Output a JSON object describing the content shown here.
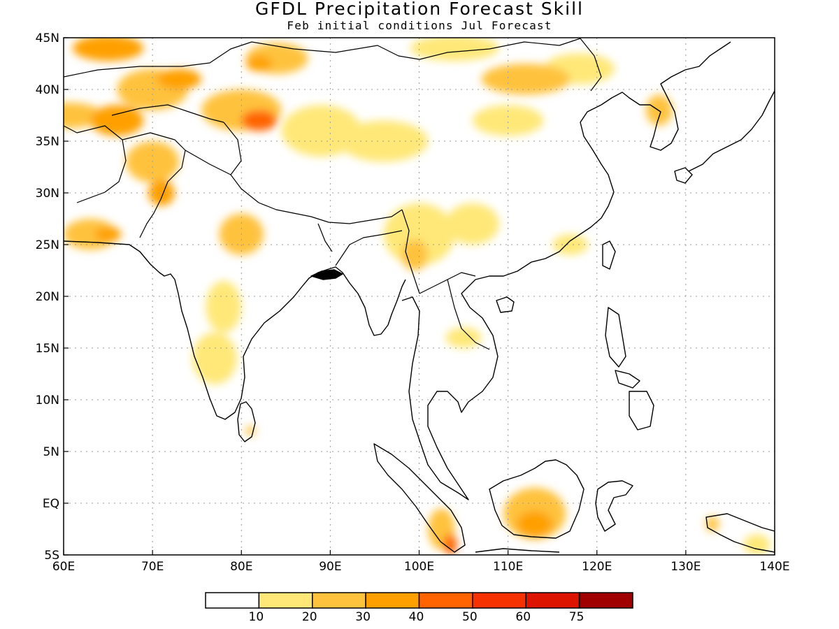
{
  "title": "GFDL Precipitation Forecast Skill",
  "subtitle": "Feb initial conditions  Jul Forecast",
  "colors": {
    "frame": "#000000",
    "grid": "#9a9a9a",
    "coast": "#000000"
  },
  "chart_data": {
    "type": "heatmap",
    "lon_range": [
      60,
      140
    ],
    "lat_range": [
      -5,
      45
    ],
    "x_ticks": [
      {
        "value": 60,
        "label": "60E"
      },
      {
        "value": 70,
        "label": "70E"
      },
      {
        "value": 80,
        "label": "80E"
      },
      {
        "value": 90,
        "label": "90E"
      },
      {
        "value": 100,
        "label": "100E"
      },
      {
        "value": 110,
        "label": "110E"
      },
      {
        "value": 120,
        "label": "120E"
      },
      {
        "value": 130,
        "label": "130E"
      },
      {
        "value": 140,
        "label": "140E"
      }
    ],
    "y_ticks": [
      {
        "value": 45,
        "label": "45N"
      },
      {
        "value": 40,
        "label": "40N"
      },
      {
        "value": 35,
        "label": "35N"
      },
      {
        "value": 30,
        "label": "30N"
      },
      {
        "value": 25,
        "label": "25N"
      },
      {
        "value": 20,
        "label": "20N"
      },
      {
        "value": 15,
        "label": "15N"
      },
      {
        "value": 10,
        "label": "10N"
      },
      {
        "value": 5,
        "label": "5N"
      },
      {
        "value": 0,
        "label": "EQ"
      },
      {
        "value": -5,
        "label": "5S"
      }
    ],
    "grid": true,
    "colorbar": {
      "boundaries": [
        "10",
        "20",
        "30",
        "40",
        "50",
        "60",
        "75"
      ],
      "colors": [
        "#ffffff",
        "#ffe878",
        "#ffc23c",
        "#ffa000",
        "#ff6400",
        "#f53200",
        "#dc1400",
        "#a00000"
      ]
    },
    "skill_regions": [
      {
        "lon": 65,
        "lat": 44,
        "w": 8,
        "h": 2.5,
        "level": 3
      },
      {
        "lon": 60.5,
        "lat": 37.5,
        "w": 8,
        "h": 2.5,
        "level": 2
      },
      {
        "lon": 66,
        "lat": 37,
        "w": 6,
        "h": 3,
        "level": 3
      },
      {
        "lon": 70,
        "lat": 40,
        "w": 8,
        "h": 4,
        "level": 2
      },
      {
        "lon": 73,
        "lat": 41,
        "w": 5,
        "h": 2,
        "level": 3
      },
      {
        "lon": 80,
        "lat": 38,
        "w": 9,
        "h": 4,
        "level": 2
      },
      {
        "lon": 82,
        "lat": 37,
        "w": 4,
        "h": 2,
        "level": 4
      },
      {
        "lon": 84,
        "lat": 43,
        "w": 7,
        "h": 3,
        "level": 2
      },
      {
        "lon": 82,
        "lat": 42.5,
        "w": 3,
        "h": 1.5,
        "level": 3
      },
      {
        "lon": 70,
        "lat": 33,
        "w": 6,
        "h": 4,
        "level": 2
      },
      {
        "lon": 71,
        "lat": 30,
        "w": 3,
        "h": 2.5,
        "level": 3
      },
      {
        "lon": 63,
        "lat": 26,
        "w": 6,
        "h": 3,
        "level": 2
      },
      {
        "lon": 65,
        "lat": 26,
        "w": 3,
        "h": 1.5,
        "level": 3
      },
      {
        "lon": 80,
        "lat": 26,
        "w": 5,
        "h": 4,
        "level": 2
      },
      {
        "lon": 89,
        "lat": 36,
        "w": 9,
        "h": 5,
        "level": 1
      },
      {
        "lon": 96,
        "lat": 35,
        "w": 10,
        "h": 4,
        "level": 1
      },
      {
        "lon": 100,
        "lat": 26,
        "w": 8,
        "h": 6,
        "level": 1
      },
      {
        "lon": 99.5,
        "lat": 24,
        "w": 3,
        "h": 3,
        "level": 2
      },
      {
        "lon": 106,
        "lat": 27,
        "w": 6,
        "h": 4,
        "level": 1
      },
      {
        "lon": 112,
        "lat": 41,
        "w": 10,
        "h": 3,
        "level": 2
      },
      {
        "lon": 104,
        "lat": 44,
        "w": 10,
        "h": 2.5,
        "level": 1
      },
      {
        "lon": 118,
        "lat": 42,
        "w": 8,
        "h": 3,
        "level": 1
      },
      {
        "lon": 110,
        "lat": 37,
        "w": 8,
        "h": 3,
        "level": 1
      },
      {
        "lon": 127,
        "lat": 38,
        "w": 3,
        "h": 3,
        "level": 2
      },
      {
        "lon": 117,
        "lat": 25,
        "w": 4,
        "h": 2,
        "level": 1
      },
      {
        "lon": 78,
        "lat": 19,
        "w": 4,
        "h": 5,
        "level": 1
      },
      {
        "lon": 77,
        "lat": 14,
        "w": 5,
        "h": 5,
        "level": 1
      },
      {
        "lon": 105,
        "lat": 16,
        "w": 4,
        "h": 2,
        "level": 1
      },
      {
        "lon": 113,
        "lat": -1,
        "w": 7,
        "h": 5,
        "level": 2
      },
      {
        "lon": 113,
        "lat": -2,
        "w": 4,
        "h": 2.5,
        "level": 3
      },
      {
        "lon": 102.5,
        "lat": -2.5,
        "w": 3,
        "h": 4,
        "level": 2
      },
      {
        "lon": 103.5,
        "lat": -4,
        "w": 1.5,
        "h": 2,
        "level": 4
      },
      {
        "lon": 133,
        "lat": -2,
        "w": 1.5,
        "h": 1.5,
        "level": 2
      },
      {
        "lon": 138,
        "lat": -4,
        "w": 3,
        "h": 2,
        "level": 1
      },
      {
        "lon": 81,
        "lat": 7,
        "w": 1,
        "h": 1,
        "level": 2
      }
    ]
  }
}
